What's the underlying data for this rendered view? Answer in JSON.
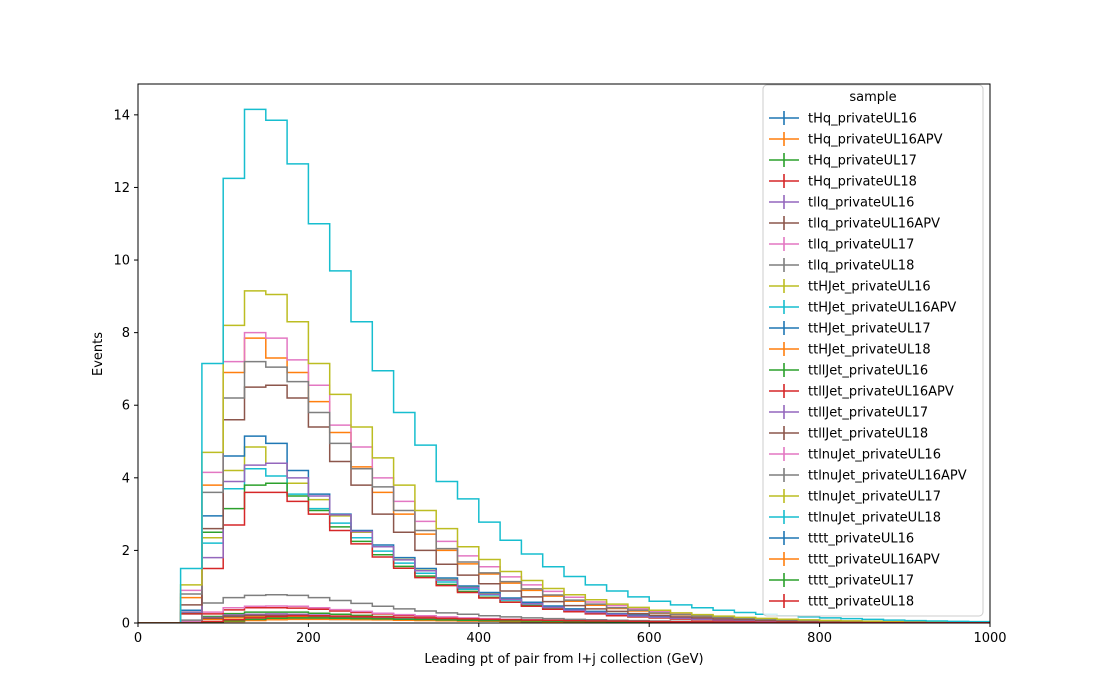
{
  "chart_data": {
    "type": "line",
    "style": "step histogram",
    "xlabel": "Leading pt of pair from l+j collection (GeV)",
    "ylabel": "Events",
    "xlim": [
      0,
      1000
    ],
    "ylim": [
      0,
      14.85
    ],
    "xticks": [
      0,
      200,
      400,
      600,
      800,
      1000
    ],
    "yticks": [
      0,
      2,
      4,
      6,
      8,
      10,
      12,
      14
    ],
    "grid": false,
    "legend": {
      "title": "sample",
      "placement": "top-right"
    },
    "bin_edges": [
      0,
      25,
      50,
      75,
      100,
      125,
      150,
      175,
      200,
      225,
      250,
      275,
      300,
      325,
      350,
      375,
      400,
      425,
      450,
      475,
      500,
      525,
      550,
      575,
      600,
      625,
      650,
      675,
      700,
      725,
      750,
      775,
      800,
      825,
      850,
      875,
      900,
      925,
      950,
      975,
      1000
    ],
    "series": [
      {
        "name": "tHq_privateUL16",
        "color": "#1f77b4",
        "values": [
          0,
          0,
          0.02,
          0.12,
          0.17,
          0.2,
          0.2,
          0.2,
          0.18,
          0.16,
          0.14,
          0.12,
          0.1,
          0.09,
          0.08,
          0.07,
          0.06,
          0.05,
          0.04,
          0.035,
          0.03,
          0.025,
          0.02,
          0.018,
          0.015,
          0.012,
          0.01,
          0.01,
          0.008,
          0.007,
          0.006,
          0.005,
          0.004,
          0.004,
          0.003,
          0.003,
          0.002,
          0.002,
          0.002,
          0.002
        ]
      },
      {
        "name": "tHq_privateUL16APV",
        "color": "#ff7f0e",
        "values": [
          0,
          0,
          0.02,
          0.1,
          0.14,
          0.17,
          0.17,
          0.17,
          0.15,
          0.13,
          0.12,
          0.1,
          0.09,
          0.08,
          0.07,
          0.06,
          0.05,
          0.04,
          0.035,
          0.03,
          0.025,
          0.02,
          0.018,
          0.015,
          0.012,
          0.01,
          0.009,
          0.008,
          0.007,
          0.006,
          0.005,
          0.004,
          0.004,
          0.003,
          0.003,
          0.002,
          0.002,
          0.002,
          0.001,
          0.001
        ]
      },
      {
        "name": "tHq_privateUL17",
        "color": "#2ca02c",
        "values": [
          0,
          0,
          0.03,
          0.18,
          0.26,
          0.3,
          0.3,
          0.3,
          0.27,
          0.24,
          0.21,
          0.18,
          0.15,
          0.13,
          0.11,
          0.1,
          0.08,
          0.07,
          0.06,
          0.05,
          0.045,
          0.04,
          0.035,
          0.03,
          0.025,
          0.02,
          0.018,
          0.015,
          0.012,
          0.01,
          0.009,
          0.008,
          0.007,
          0.006,
          0.005,
          0.004,
          0.004,
          0.003,
          0.003,
          0.003
        ]
      },
      {
        "name": "tHq_privateUL18",
        "color": "#d62728",
        "values": [
          0,
          0,
          0.04,
          0.25,
          0.36,
          0.42,
          0.42,
          0.41,
          0.38,
          0.33,
          0.29,
          0.25,
          0.21,
          0.18,
          0.15,
          0.13,
          0.11,
          0.1,
          0.08,
          0.07,
          0.06,
          0.05,
          0.045,
          0.04,
          0.035,
          0.03,
          0.025,
          0.02,
          0.017,
          0.015,
          0.013,
          0.011,
          0.01,
          0.009,
          0.008,
          0.007,
          0.006,
          0.005,
          0.005,
          0.004
        ]
      },
      {
        "name": "tllq_privateUL16",
        "color": "#9467bd",
        "values": [
          0,
          0,
          0.03,
          0.15,
          0.22,
          0.24,
          0.25,
          0.24,
          0.22,
          0.19,
          0.16,
          0.14,
          0.12,
          0.1,
          0.09,
          0.07,
          0.06,
          0.05,
          0.045,
          0.04,
          0.035,
          0.03,
          0.025,
          0.02,
          0.018,
          0.015,
          0.012,
          0.01,
          0.009,
          0.008,
          0.007,
          0.006,
          0.005,
          0.004,
          0.004,
          0.003,
          0.003,
          0.002,
          0.002,
          0.002
        ]
      },
      {
        "name": "tllq_privateUL16APV",
        "color": "#8c564b",
        "values": [
          0,
          0,
          0.03,
          0.13,
          0.19,
          0.21,
          0.21,
          0.21,
          0.19,
          0.17,
          0.14,
          0.12,
          0.1,
          0.09,
          0.08,
          0.065,
          0.055,
          0.045,
          0.04,
          0.035,
          0.03,
          0.025,
          0.02,
          0.018,
          0.015,
          0.012,
          0.01,
          0.009,
          0.008,
          0.007,
          0.006,
          0.005,
          0.004,
          0.004,
          0.003,
          0.003,
          0.002,
          0.002,
          0.002,
          0.001
        ]
      },
      {
        "name": "tllq_privateUL17",
        "color": "#e377c2",
        "values": [
          0,
          0,
          0.05,
          0.3,
          0.42,
          0.46,
          0.47,
          0.46,
          0.42,
          0.37,
          0.32,
          0.27,
          0.23,
          0.2,
          0.17,
          0.14,
          0.12,
          0.1,
          0.09,
          0.075,
          0.065,
          0.055,
          0.045,
          0.04,
          0.035,
          0.03,
          0.025,
          0.02,
          0.018,
          0.015,
          0.013,
          0.011,
          0.01,
          0.009,
          0.008,
          0.007,
          0.006,
          0.005,
          0.005,
          0.004
        ]
      },
      {
        "name": "tllq_privateUL18",
        "color": "#7f7f7f",
        "values": [
          0,
          0,
          0.08,
          0.55,
          0.7,
          0.76,
          0.78,
          0.76,
          0.7,
          0.62,
          0.54,
          0.46,
          0.39,
          0.33,
          0.28,
          0.24,
          0.2,
          0.17,
          0.14,
          0.12,
          0.1,
          0.09,
          0.075,
          0.065,
          0.055,
          0.045,
          0.04,
          0.035,
          0.03,
          0.025,
          0.02,
          0.018,
          0.015,
          0.013,
          0.011,
          0.01,
          0.009,
          0.008,
          0.007,
          0.006
        ]
      },
      {
        "name": "ttHJet_privateUL16",
        "color": "#bcbd22",
        "values": [
          0,
          0,
          0.3,
          2.35,
          4.2,
          4.85,
          4.4,
          3.85,
          3.4,
          2.95,
          2.5,
          2.1,
          1.75,
          1.45,
          1.2,
          1.0,
          0.82,
          0.68,
          0.56,
          0.46,
          0.38,
          0.31,
          0.26,
          0.21,
          0.17,
          0.14,
          0.12,
          0.1,
          0.08,
          0.066,
          0.055,
          0.045,
          0.037,
          0.03,
          0.025,
          0.021,
          0.017,
          0.014,
          0.012,
          0.01
        ]
      },
      {
        "name": "ttHJet_privateUL16APV",
        "color": "#17becf",
        "values": [
          0,
          0,
          0.25,
          2.2,
          3.7,
          4.25,
          4.05,
          3.55,
          3.15,
          2.75,
          2.35,
          1.98,
          1.65,
          1.37,
          1.13,
          0.93,
          0.77,
          0.63,
          0.52,
          0.43,
          0.35,
          0.29,
          0.24,
          0.2,
          0.16,
          0.13,
          0.11,
          0.09,
          0.075,
          0.062,
          0.051,
          0.042,
          0.035,
          0.029,
          0.024,
          0.02,
          0.016,
          0.013,
          0.011,
          0.009
        ]
      },
      {
        "name": "ttHJet_privateUL17",
        "color": "#1f77b4",
        "values": [
          0,
          0,
          0.35,
          2.95,
          4.6,
          5.15,
          4.95,
          4.2,
          3.55,
          3.0,
          2.55,
          2.15,
          1.8,
          1.5,
          1.24,
          1.02,
          0.84,
          0.69,
          0.57,
          0.47,
          0.39,
          0.32,
          0.26,
          0.22,
          0.18,
          0.15,
          0.12,
          0.1,
          0.085,
          0.07,
          0.058,
          0.048,
          0.04,
          0.033,
          0.027,
          0.022,
          0.018,
          0.015,
          0.013,
          0.011
        ]
      },
      {
        "name": "ttHJet_privateUL18",
        "color": "#ff7f0e",
        "values": [
          0,
          0,
          0.7,
          3.8,
          6.9,
          7.85,
          7.3,
          6.9,
          6.1,
          5.25,
          4.3,
          3.6,
          3.0,
          2.45,
          2.0,
          1.63,
          1.35,
          1.1,
          0.9,
          0.74,
          0.6,
          0.49,
          0.4,
          0.33,
          0.27,
          0.22,
          0.18,
          0.15,
          0.12,
          0.1,
          0.085,
          0.07,
          0.058,
          0.048,
          0.04,
          0.033,
          0.027,
          0.022,
          0.018,
          0.015
        ]
      },
      {
        "name": "ttllJet_privateUL16",
        "color": "#2ca02c",
        "values": [
          0,
          0,
          0.28,
          2.5,
          3.15,
          3.8,
          3.85,
          3.5,
          3.1,
          2.65,
          2.25,
          1.88,
          1.56,
          1.29,
          1.06,
          0.87,
          0.71,
          0.58,
          0.48,
          0.39,
          0.32,
          0.26,
          0.21,
          0.17,
          0.14,
          0.115,
          0.095,
          0.078,
          0.064,
          0.053,
          0.044,
          0.036,
          0.03,
          0.025,
          0.02,
          0.017,
          0.014,
          0.011,
          0.009,
          0.008
        ]
      },
      {
        "name": "ttllJet_privateUL16APV",
        "color": "#d62728",
        "values": [
          0,
          0,
          0.25,
          1.5,
          2.7,
          3.6,
          3.6,
          3.35,
          3.0,
          2.55,
          2.18,
          1.82,
          1.51,
          1.25,
          1.03,
          0.84,
          0.69,
          0.57,
          0.46,
          0.38,
          0.31,
          0.25,
          0.2,
          0.17,
          0.14,
          0.11,
          0.09,
          0.075,
          0.062,
          0.051,
          0.042,
          0.035,
          0.029,
          0.024,
          0.02,
          0.016,
          0.013,
          0.011,
          0.009,
          0.007
        ]
      },
      {
        "name": "ttllJet_privateUL17",
        "color": "#9467bd",
        "values": [
          0,
          0,
          0.3,
          1.8,
          3.9,
          4.35,
          4.4,
          4.0,
          3.5,
          2.98,
          2.52,
          2.1,
          1.74,
          1.44,
          1.18,
          0.97,
          0.79,
          0.65,
          0.53,
          0.43,
          0.35,
          0.29,
          0.24,
          0.19,
          0.16,
          0.13,
          0.105,
          0.086,
          0.07,
          0.058,
          0.048,
          0.039,
          0.032,
          0.026,
          0.022,
          0.018,
          0.015,
          0.012,
          0.01,
          0.008
        ]
      },
      {
        "name": "ttllJet_privateUL18",
        "color": "#8c564b",
        "values": [
          0,
          0,
          0.5,
          2.6,
          5.6,
          6.5,
          6.55,
          6.2,
          5.4,
          4.45,
          3.8,
          3.0,
          2.5,
          2.0,
          1.62,
          1.32,
          1.08,
          0.88,
          0.72,
          0.59,
          0.48,
          0.39,
          0.32,
          0.26,
          0.21,
          0.17,
          0.14,
          0.115,
          0.094,
          0.077,
          0.063,
          0.052,
          0.042,
          0.035,
          0.028,
          0.023,
          0.019,
          0.016,
          0.013,
          0.01
        ]
      },
      {
        "name": "ttlnuJet_privateUL16",
        "color": "#e377c2",
        "values": [
          0,
          0,
          0.9,
          4.15,
          7.2,
          8.0,
          7.85,
          7.25,
          6.55,
          5.45,
          4.85,
          4.0,
          3.35,
          2.8,
          2.25,
          1.85,
          1.55,
          1.27,
          1.05,
          0.87,
          0.71,
          0.58,
          0.48,
          0.39,
          0.32,
          0.26,
          0.21,
          0.17,
          0.14,
          0.115,
          0.095,
          0.078,
          0.064,
          0.053,
          0.044,
          0.036,
          0.03,
          0.024,
          0.02,
          0.016
        ]
      },
      {
        "name": "ttlnuJet_privateUL16APV",
        "color": "#7f7f7f",
        "values": [
          0,
          0,
          0.8,
          3.6,
          6.2,
          7.2,
          7.05,
          6.65,
          5.8,
          4.95,
          4.25,
          3.75,
          3.1,
          2.55,
          2.05,
          1.68,
          1.38,
          1.14,
          0.94,
          0.77,
          0.63,
          0.52,
          0.42,
          0.35,
          0.28,
          0.23,
          0.19,
          0.155,
          0.127,
          0.104,
          0.085,
          0.07,
          0.057,
          0.047,
          0.038,
          0.031,
          0.026,
          0.021,
          0.017,
          0.014
        ]
      },
      {
        "name": "ttlnuJet_privateUL17",
        "color": "#bcbd22",
        "values": [
          0,
          0,
          1.05,
          4.7,
          8.2,
          9.15,
          9.05,
          8.3,
          7.15,
          6.3,
          5.4,
          4.55,
          3.8,
          3.1,
          2.6,
          2.1,
          1.75,
          1.42,
          1.17,
          0.95,
          0.78,
          0.64,
          0.52,
          0.43,
          0.35,
          0.28,
          0.23,
          0.19,
          0.155,
          0.127,
          0.104,
          0.085,
          0.07,
          0.057,
          0.047,
          0.038,
          0.031,
          0.026,
          0.021,
          0.017
        ]
      },
      {
        "name": "ttlnuJet_privateUL18",
        "color": "#17becf",
        "values": [
          0,
          0,
          1.5,
          7.15,
          12.25,
          14.15,
          13.85,
          12.65,
          11.0,
          9.7,
          8.3,
          6.95,
          5.8,
          4.9,
          3.9,
          3.42,
          2.78,
          2.28,
          1.9,
          1.55,
          1.28,
          1.05,
          0.88,
          0.72,
          0.6,
          0.5,
          0.42,
          0.35,
          0.29,
          0.24,
          0.2,
          0.17,
          0.14,
          0.12,
          0.1,
          0.08,
          0.065,
          0.055,
          0.045,
          0.038
        ]
      },
      {
        "name": "tttt_privateUL16",
        "color": "#1f77b4",
        "values": [
          0,
          0,
          0,
          0.02,
          0.05,
          0.08,
          0.1,
          0.11,
          0.11,
          0.1,
          0.095,
          0.09,
          0.08,
          0.075,
          0.068,
          0.06,
          0.054,
          0.048,
          0.043,
          0.038,
          0.034,
          0.03,
          0.026,
          0.023,
          0.02,
          0.018,
          0.016,
          0.014,
          0.012,
          0.011,
          0.01,
          0.009,
          0.008,
          0.007,
          0.006,
          0.005,
          0.005,
          0.004,
          0.004,
          0.003
        ]
      },
      {
        "name": "tttt_privateUL16APV",
        "color": "#ff7f0e",
        "values": [
          0,
          0,
          0,
          0.02,
          0.04,
          0.07,
          0.09,
          0.1,
          0.1,
          0.095,
          0.09,
          0.085,
          0.075,
          0.07,
          0.063,
          0.056,
          0.05,
          0.045,
          0.04,
          0.035,
          0.031,
          0.028,
          0.025,
          0.022,
          0.019,
          0.017,
          0.015,
          0.013,
          0.011,
          0.01,
          0.009,
          0.008,
          0.007,
          0.006,
          0.006,
          0.005,
          0.004,
          0.004,
          0.003,
          0.003
        ]
      },
      {
        "name": "tttt_privateUL17",
        "color": "#2ca02c",
        "values": [
          0,
          0,
          0,
          0.03,
          0.06,
          0.1,
          0.13,
          0.14,
          0.14,
          0.13,
          0.12,
          0.115,
          0.105,
          0.095,
          0.085,
          0.077,
          0.069,
          0.061,
          0.055,
          0.049,
          0.043,
          0.038,
          0.034,
          0.03,
          0.026,
          0.023,
          0.02,
          0.018,
          0.016,
          0.014,
          0.012,
          0.011,
          0.01,
          0.009,
          0.008,
          0.007,
          0.006,
          0.005,
          0.005,
          0.004
        ]
      },
      {
        "name": "tttt_privateUL18",
        "color": "#d62728",
        "values": [
          0,
          0,
          0,
          0.04,
          0.09,
          0.14,
          0.18,
          0.2,
          0.2,
          0.19,
          0.18,
          0.17,
          0.155,
          0.14,
          0.125,
          0.112,
          0.1,
          0.089,
          0.08,
          0.071,
          0.063,
          0.056,
          0.05,
          0.044,
          0.039,
          0.034,
          0.03,
          0.027,
          0.024,
          0.021,
          0.019,
          0.017,
          0.015,
          0.013,
          0.012,
          0.01,
          0.009,
          0.008,
          0.007,
          0.006
        ]
      }
    ]
  }
}
